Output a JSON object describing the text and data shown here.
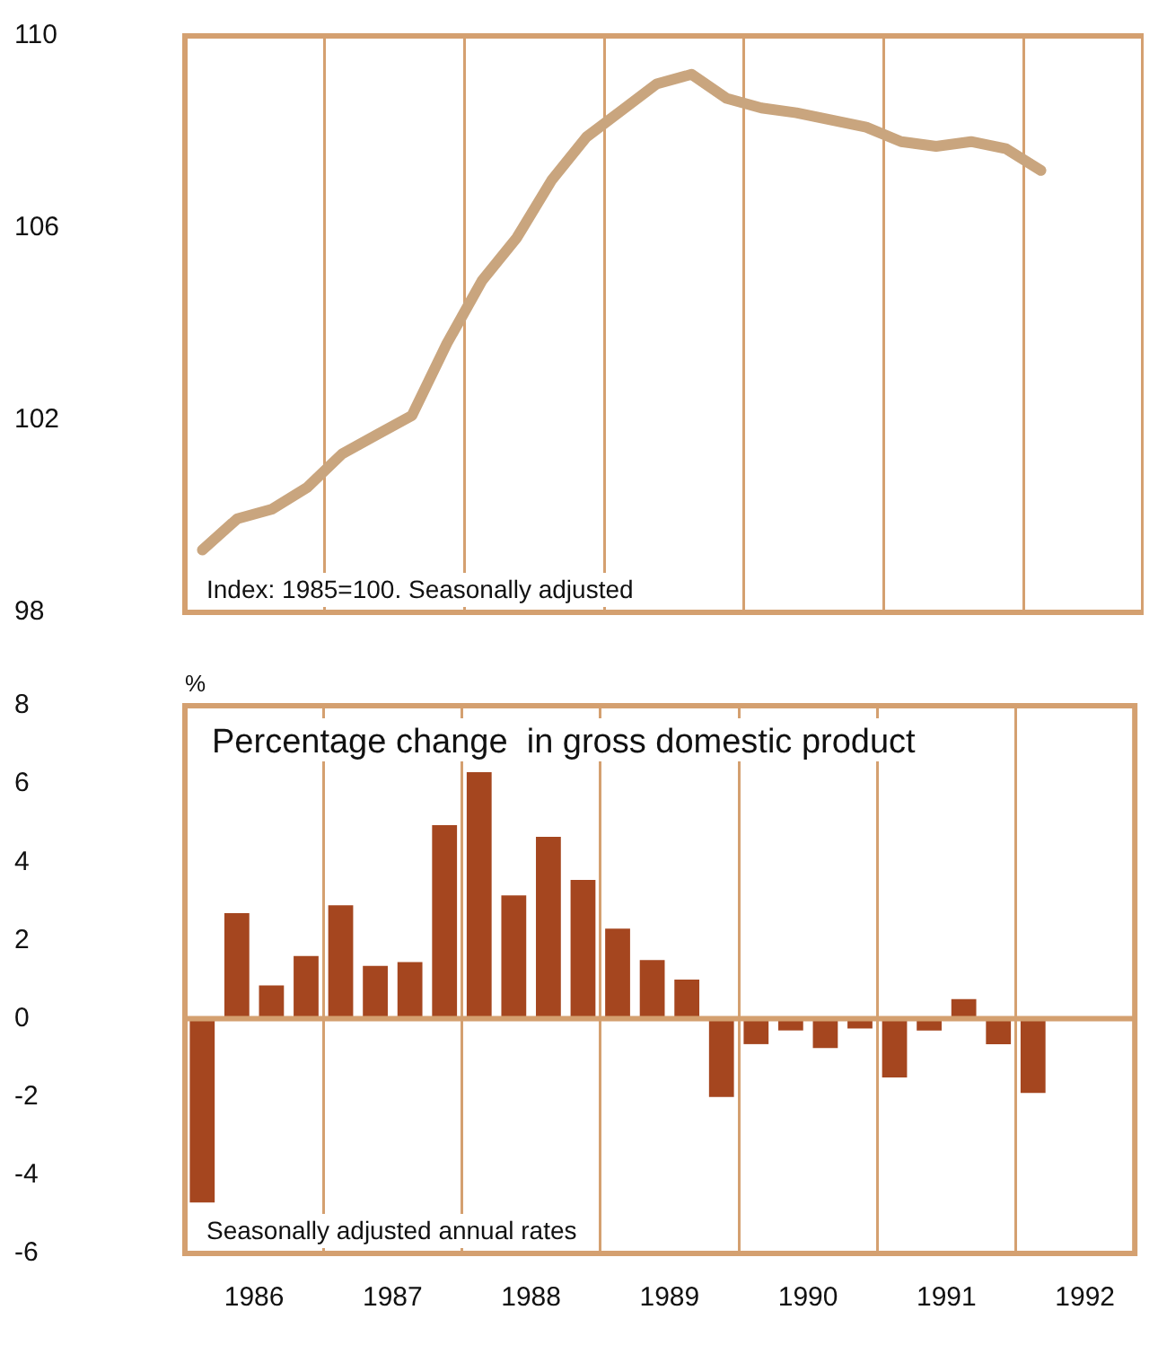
{
  "chart_data": [
    {
      "type": "line",
      "marker": "none",
      "color": "#c9a57e",
      "x": [
        1986.125,
        1986.375,
        1986.625,
        1986.875,
        1987.125,
        1987.375,
        1987.625,
        1987.875,
        1988.125,
        1988.375,
        1988.625,
        1988.875,
        1989.125,
        1989.375,
        1989.625,
        1989.875,
        1990.125,
        1990.375,
        1990.625,
        1990.875,
        1991.125,
        1991.375,
        1991.625,
        1991.875,
        1992.125
      ],
      "values": [
        99.3,
        99.95,
        100.15,
        100.6,
        101.3,
        101.7,
        102.1,
        103.6,
        104.9,
        105.8,
        107.0,
        107.9,
        108.45,
        109.0,
        109.2,
        108.7,
        108.5,
        108.4,
        108.25,
        108.1,
        107.8,
        107.7,
        107.8,
        107.65,
        107.2
      ],
      "xlim": [
        1986,
        1992.86
      ],
      "xticks": [
        {
          "value": 1987,
          "label": null
        },
        {
          "value": 1988,
          "label": null
        },
        {
          "value": 1989,
          "label": null
        },
        {
          "value": 1990,
          "label": null
        },
        {
          "value": 1991,
          "label": null
        },
        {
          "value": 1992,
          "label": null
        }
      ],
      "ylim": [
        98,
        110
      ],
      "yticks": [
        98,
        102,
        106,
        110
      ],
      "grid": "x",
      "tick_labels": "y",
      "annotations": [
        "Index: 1985=100. Seasonally adjusted"
      ]
    },
    {
      "type": "bar",
      "title": "Percentage change  in gross domestic product",
      "ylabel": "%",
      "color": "#a5461f",
      "x": [
        1986.125,
        1986.375,
        1986.625,
        1986.875,
        1987.125,
        1987.375,
        1987.625,
        1987.875,
        1988.125,
        1988.375,
        1988.625,
        1988.875,
        1989.125,
        1989.375,
        1989.625,
        1989.875,
        1990.125,
        1990.375,
        1990.625,
        1990.875,
        1991.125,
        1991.375,
        1991.625,
        1991.875,
        1992.125
      ],
      "values": [
        -4.7,
        2.7,
        0.85,
        1.6,
        2.9,
        1.35,
        1.45,
        4.95,
        6.3,
        3.15,
        4.65,
        3.55,
        2.3,
        1.5,
        1.0,
        -2.0,
        -0.65,
        -0.3,
        -0.75,
        -0.25,
        -1.5,
        -0.3,
        0.5,
        -0.65,
        -1.9
      ],
      "xlim": [
        1986,
        1992.86
      ],
      "xticks": [
        {
          "value": 1986.5,
          "label": "1986"
        },
        {
          "value": 1987,
          "label": null
        },
        {
          "value": 1987.5,
          "label": "1987"
        },
        {
          "value": 1988,
          "label": null
        },
        {
          "value": 1988.5,
          "label": "1988"
        },
        {
          "value": 1989,
          "label": null
        },
        {
          "value": 1989.5,
          "label": "1989"
        },
        {
          "value": 1990,
          "label": null
        },
        {
          "value": 1990.5,
          "label": "1990"
        },
        {
          "value": 1991,
          "label": null
        },
        {
          "value": 1991.5,
          "label": "1991"
        },
        {
          "value": 1992,
          "label": null
        },
        {
          "value": 1992.5,
          "label": "1992"
        }
      ],
      "ylim": [
        -6,
        8
      ],
      "yticks": [
        -6,
        -4,
        -2,
        0,
        2,
        4,
        6,
        8
      ],
      "grid": "x",
      "ref_lines": [
        {
          "axis": "y",
          "value": 0,
          "color": "#d4a070"
        }
      ],
      "annotations": [
        "Seasonally adjusted annual rates"
      ]
    }
  ]
}
